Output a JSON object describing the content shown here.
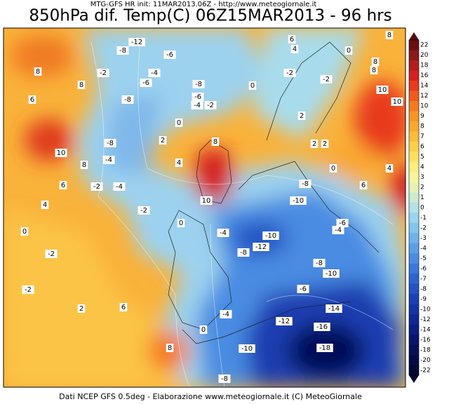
{
  "header": {
    "subtitle": "MTG-GFS HR init: 11MAR2013.06Z - http://www.meteogiornale.it",
    "title": "850hPa dif. Temp(C) 06Z15MAR2013 - 96 hrs"
  },
  "footer": "Dati NCEP GFS 0.5deg - Elaborazione www.meteogiornale.it (C) MeteoGiornale",
  "colorbar": {
    "labels": [
      22,
      20,
      18,
      16,
      14,
      12,
      10,
      9,
      8,
      7,
      6,
      5,
      4,
      3,
      2,
      1,
      0,
      -1,
      -2,
      -3,
      -4,
      -5,
      -6,
      -7,
      -8,
      -9,
      -10,
      -12,
      -14,
      -16,
      -18,
      -20,
      -22
    ],
    "colors": [
      "#6a0e0e",
      "#8b1a1a",
      "#b01e1e",
      "#d42020",
      "#e83a1e",
      "#f05a1e",
      "#f47a22",
      "#f79428",
      "#f9a830",
      "#fbbc3c",
      "#fcd04a",
      "#fde060",
      "#fdee80",
      "#f8f49c",
      "#e6f2b4",
      "#cdebd0",
      "#b4e2e6",
      "#9ad4ee",
      "#84c4ee",
      "#70b2ec",
      "#5c9fe8",
      "#4a8ce2",
      "#3a78da",
      "#2c64d0",
      "#2252c4",
      "#1a42b6",
      "#1434a6",
      "#102894",
      "#0c1e80",
      "#08166c",
      "#061058",
      "#040c46",
      "#020832"
    ]
  },
  "contour_labels": [
    -12,
    -8,
    -6,
    -2,
    -4,
    -6,
    -8,
    -8,
    -6,
    -4,
    -2,
    0,
    2,
    -8,
    -4,
    4,
    8,
    10,
    -2,
    -4,
    -2,
    0,
    -4,
    -10,
    -8,
    -12,
    -10,
    -8,
    -6,
    -4,
    -6,
    -8,
    -10,
    -14,
    -12,
    -16,
    -18,
    -10,
    -8,
    -4,
    0,
    8,
    6,
    2,
    -2,
    0,
    -2,
    6,
    8,
    8,
    10,
    8,
    4,
    6,
    10,
    10,
    8,
    6,
    0,
    8,
    4,
    6,
    2,
    2,
    -2,
    -2,
    0,
    4,
    2,
    0,
    8
  ]
}
